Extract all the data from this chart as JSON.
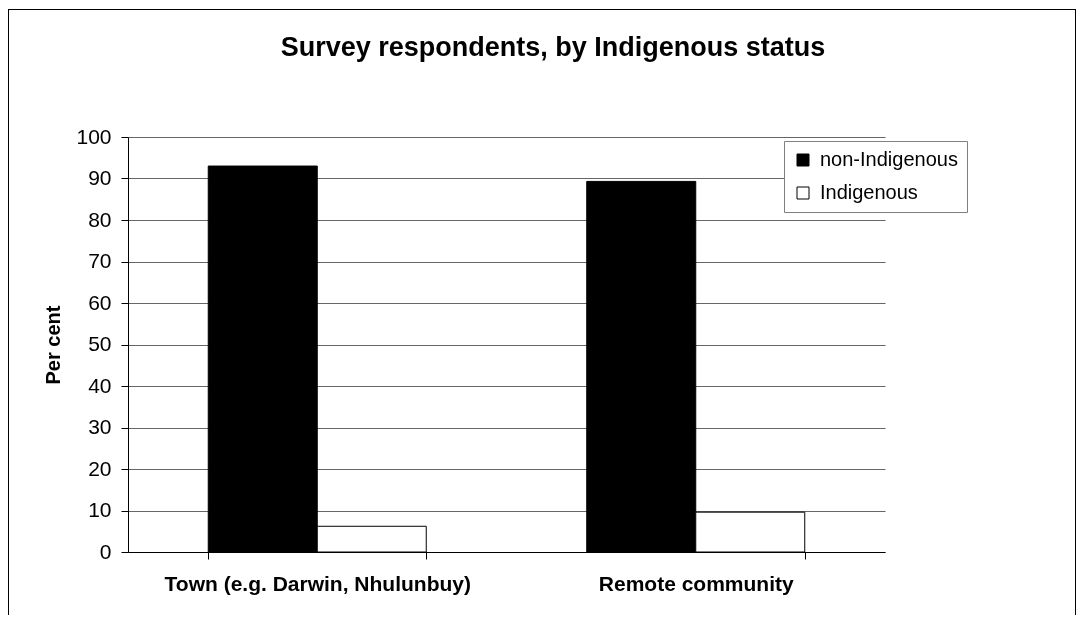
{
  "chart_data": {
    "type": "bar",
    "title": "Survey respondents, by Indigenous status",
    "ylabel": "Per cent",
    "categories": [
      "Town (e.g. Darwin, Nhulunbuy)",
      "Remote community"
    ],
    "series": [
      {
        "name": "non-Indigenous",
        "color": "#000000",
        "values": [
          93,
          89.3
        ]
      },
      {
        "name": "Indigenous",
        "color": "#ffffff",
        "values": [
          6.2,
          9.6
        ]
      }
    ],
    "ylim": [
      0,
      100
    ],
    "yticks": [
      0,
      10,
      20,
      30,
      40,
      50,
      60,
      70,
      80,
      90,
      100
    ],
    "grid": "y",
    "legend": "top right"
  }
}
